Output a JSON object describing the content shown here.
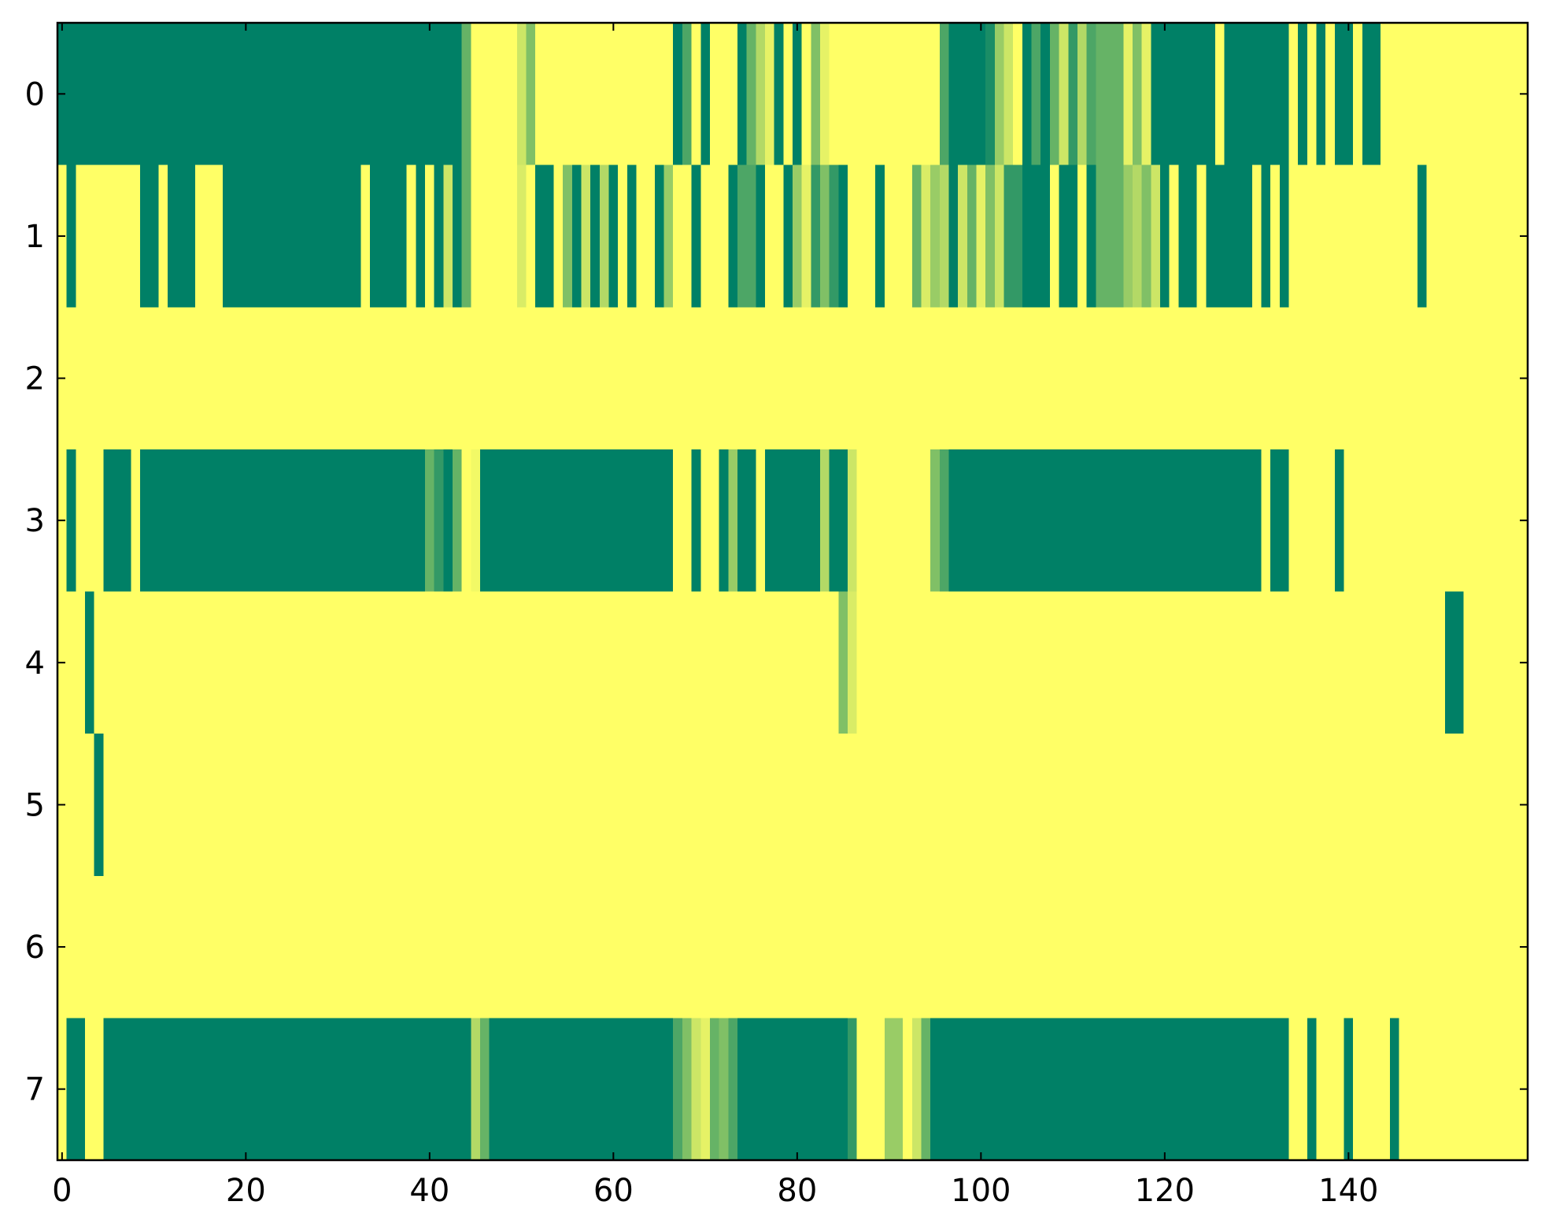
{
  "chart_data": {
    "type": "heatmap",
    "xlim": [
      -0.5,
      159.5
    ],
    "ylim": [
      7.5,
      -0.5
    ],
    "xticks": [
      0,
      20,
      40,
      60,
      80,
      100,
      120,
      140
    ],
    "yticks": [
      0,
      1,
      2,
      3,
      4,
      5,
      6,
      7
    ],
    "colormap": [
      "#008066",
      "#ffff66"
    ],
    "vmin": 0,
    "vmax": 1,
    "z": [
      [
        0,
        0,
        0,
        0,
        0,
        0,
        0,
        0,
        0,
        0,
        0,
        0,
        0,
        0,
        0,
        0,
        0,
        0,
        0,
        0,
        0,
        0,
        0,
        0,
        0,
        0,
        0,
        0,
        0,
        0,
        0,
        0,
        0,
        0,
        0,
        0,
        0,
        0,
        0,
        0,
        0,
        0,
        0,
        0,
        0.4,
        1,
        1,
        1,
        1,
        1,
        0.8,
        0.5,
        1,
        1,
        1,
        1,
        1,
        1,
        1,
        1,
        1,
        1,
        1,
        1,
        1,
        1,
        1,
        0,
        0.3,
        1,
        0,
        1,
        1,
        1,
        0,
        0.4,
        0.7,
        0.9,
        0,
        1,
        0,
        1,
        0.5,
        0.9,
        1,
        1,
        1,
        1,
        1,
        1,
        1,
        1,
        1,
        1,
        1,
        1,
        0.3,
        0,
        0,
        0,
        0,
        0.1,
        0.6,
        0.8,
        1,
        0,
        0.3,
        0,
        0.4,
        0.8,
        0.2,
        0.7,
        0.3,
        0.4,
        0.4,
        0.4,
        0.9,
        0.5,
        0.9,
        0,
        0,
        0,
        0,
        0,
        0,
        0,
        1,
        0,
        0,
        0,
        0,
        0,
        0,
        0,
        1,
        0,
        1,
        0,
        1,
        0,
        0,
        1,
        0,
        0,
        1,
        1,
        1,
        1,
        1,
        1,
        1,
        1,
        1,
        1,
        1,
        1,
        1,
        1,
        1,
        1
      ],
      [
        1,
        0,
        1,
        1,
        1,
        1,
        1,
        1,
        1,
        0,
        0,
        1,
        0,
        0,
        0,
        1,
        1,
        1,
        0,
        0,
        0,
        0,
        0,
        0,
        0,
        0,
        0,
        0,
        0,
        0,
        0,
        0,
        0,
        1,
        0,
        0,
        0,
        0,
        1,
        0,
        1,
        0,
        0.8,
        0,
        0.4,
        1,
        1,
        1,
        1,
        1,
        0.85,
        1,
        0,
        0,
        1,
        0.5,
        0,
        0.8,
        0,
        0.7,
        0,
        1,
        0,
        1,
        1,
        0,
        0.6,
        1,
        1,
        0,
        1,
        1,
        1,
        0,
        0.3,
        0.3,
        0,
        1,
        1,
        0,
        0.6,
        0.9,
        0.2,
        0.5,
        0.2,
        0,
        1,
        1,
        1,
        0,
        1,
        1,
        1,
        0.4,
        0.85,
        0.6,
        0.7,
        0,
        0.8,
        0.4,
        0.9,
        0.5,
        0.8,
        0.2,
        0.2,
        0,
        0,
        0,
        1,
        0,
        0,
        1,
        0,
        0.4,
        0.4,
        0.4,
        0.6,
        0.7,
        0.5,
        0.8,
        0,
        1,
        0,
        0,
        1,
        0,
        0,
        0,
        0,
        0,
        1,
        0,
        1,
        0,
        1,
        1,
        1,
        1,
        1,
        1,
        1,
        1,
        1,
        1,
        1,
        1,
        1,
        1,
        0,
        1,
        1,
        1,
        1,
        1,
        1,
        1,
        1,
        1,
        1,
        1
      ],
      [
        1,
        1,
        1,
        1,
        1,
        1,
        1,
        1,
        1,
        1,
        1,
        1,
        1,
        1,
        1,
        1,
        1,
        1,
        1,
        1,
        1,
        1,
        1,
        1,
        1,
        1,
        1,
        1,
        1,
        1,
        1,
        1,
        1,
        1,
        1,
        1,
        1,
        1,
        1,
        1,
        1,
        1,
        1,
        1,
        1,
        1,
        1,
        1,
        1,
        1,
        1,
        1,
        1,
        1,
        1,
        1,
        1,
        1,
        1,
        1,
        1,
        1,
        1,
        1,
        1,
        1,
        1,
        1,
        1,
        1,
        1,
        1,
        1,
        1,
        1,
        1,
        1,
        1,
        1,
        1,
        1,
        1,
        1,
        1,
        1,
        1,
        1,
        1,
        1,
        1,
        1,
        1,
        1,
        1,
        1,
        1,
        1,
        1,
        1,
        1,
        1,
        1,
        1,
        1,
        1,
        1,
        1,
        1,
        1,
        1,
        1,
        1,
        1,
        1,
        1,
        1,
        1,
        1,
        1,
        1,
        1,
        1,
        1,
        1,
        1,
        1,
        1,
        1,
        1,
        1,
        1,
        1,
        1,
        1,
        1,
        1,
        1,
        1,
        1,
        1,
        1,
        1,
        1,
        1,
        1,
        1,
        1,
        1,
        1,
        1,
        1,
        1,
        1,
        1,
        1,
        1,
        1,
        1,
        1,
        1
      ],
      [
        1,
        0,
        1,
        1,
        1,
        0,
        0,
        0,
        1,
        0,
        0,
        0,
        0,
        0,
        0,
        0,
        0,
        0,
        0,
        0,
        0,
        0,
        0,
        0,
        0,
        0,
        0,
        0,
        0,
        0,
        0,
        0,
        0,
        0,
        0,
        0,
        0,
        0,
        0,
        0,
        0.4,
        0.2,
        0,
        0.4,
        1,
        0.95,
        0,
        0,
        0,
        0,
        0,
        0,
        0,
        0,
        0,
        0,
        0,
        0,
        0,
        0,
        0,
        0,
        0,
        0,
        0,
        0,
        0,
        1,
        1,
        0,
        1,
        1,
        0,
        0.6,
        0,
        0,
        1,
        0,
        0,
        0,
        0,
        0,
        0,
        0.7,
        0,
        0,
        0.8,
        1,
        1,
        1,
        1,
        1,
        1,
        1,
        1,
        0.5,
        0.3,
        0,
        0,
        0,
        0,
        0,
        0,
        0,
        0,
        0,
        0,
        0,
        0,
        0,
        0,
        0,
        0,
        0,
        0,
        0,
        0,
        0,
        0,
        0,
        0,
        0,
        0,
        0,
        0,
        0,
        0,
        0,
        0,
        0,
        0,
        1,
        0,
        0,
        1,
        1,
        1,
        1,
        1,
        0,
        1,
        1,
        1,
        1,
        1,
        1,
        1,
        1,
        1,
        1,
        1,
        1,
        1,
        1,
        1,
        1,
        1,
        1,
        1,
        1
      ],
      [
        1,
        1,
        1,
        0,
        1,
        1,
        1,
        1,
        1,
        1,
        1,
        1,
        1,
        1,
        1,
        1,
        1,
        1,
        1,
        1,
        1,
        1,
        1,
        1,
        1,
        1,
        1,
        1,
        1,
        1,
        1,
        1,
        1,
        1,
        1,
        1,
        1,
        1,
        1,
        1,
        1,
        1,
        1,
        1,
        1,
        1,
        1,
        1,
        1,
        1,
        1,
        1,
        1,
        1,
        1,
        1,
        1,
        1,
        1,
        1,
        1,
        1,
        1,
        1,
        1,
        1,
        1,
        1,
        1,
        1,
        1,
        1,
        1,
        1,
        1,
        1,
        1,
        1,
        1,
        1,
        1,
        1,
        1,
        1,
        1,
        0.5,
        0.85,
        1,
        1,
        1,
        1,
        1,
        1,
        1,
        1,
        1,
        1,
        1,
        1,
        1,
        1,
        1,
        1,
        1,
        1,
        1,
        1,
        1,
        1,
        1,
        1,
        1,
        1,
        1,
        1,
        1,
        1,
        1,
        1,
        1,
        1,
        1,
        1,
        1,
        1,
        1,
        1,
        1,
        1,
        1,
        1,
        1,
        1,
        1,
        1,
        1,
        1,
        1,
        1,
        1,
        1,
        1,
        1,
        1,
        1,
        1,
        1,
        1,
        1,
        1,
        1,
        0,
        0,
        1,
        1,
        1,
        1,
        1,
        1,
        1
      ],
      [
        1,
        1,
        1,
        1,
        0,
        1,
        1,
        1,
        1,
        1,
        1,
        1,
        1,
        1,
        1,
        1,
        1,
        1,
        1,
        1,
        1,
        1,
        1,
        1,
        1,
        1,
        1,
        1,
        1,
        1,
        1,
        1,
        1,
        1,
        1,
        1,
        1,
        1,
        1,
        1,
        1,
        1,
        1,
        1,
        1,
        1,
        1,
        1,
        1,
        1,
        1,
        1,
        1,
        1,
        1,
        1,
        1,
        1,
        1,
        1,
        1,
        1,
        1,
        1,
        1,
        1,
        1,
        1,
        1,
        1,
        1,
        1,
        1,
        1,
        1,
        1,
        1,
        1,
        1,
        1,
        1,
        1,
        1,
        1,
        1,
        1,
        1,
        1,
        1,
        1,
        1,
        1,
        1,
        1,
        1,
        1,
        1,
        1,
        1,
        1,
        1,
        1,
        1,
        1,
        1,
        1,
        1,
        1,
        1,
        1,
        1,
        1,
        1,
        1,
        1,
        1,
        1,
        1,
        1,
        1,
        1,
        1,
        1,
        1,
        1,
        1,
        1,
        1,
        1,
        1,
        1,
        1,
        1,
        1,
        1,
        1,
        1,
        1,
        1,
        1,
        1,
        1,
        1,
        1,
        1,
        1,
        1,
        1,
        1,
        1,
        1,
        1,
        1,
        1,
        1,
        1,
        1,
        1,
        1,
        1
      ],
      [
        1,
        1,
        1,
        1,
        1,
        1,
        1,
        1,
        1,
        1,
        1,
        1,
        1,
        1,
        1,
        1,
        1,
        1,
        1,
        1,
        1,
        1,
        1,
        1,
        1,
        1,
        1,
        1,
        1,
        1,
        1,
        1,
        1,
        1,
        1,
        1,
        1,
        1,
        1,
        1,
        1,
        1,
        1,
        1,
        1,
        1,
        1,
        1,
        1,
        1,
        1,
        1,
        1,
        1,
        1,
        1,
        1,
        1,
        1,
        1,
        1,
        1,
        1,
        1,
        1,
        1,
        1,
        1,
        1,
        1,
        1,
        1,
        1,
        1,
        1,
        1,
        1,
        1,
        1,
        1,
        1,
        1,
        1,
        1,
        1,
        1,
        1,
        1,
        1,
        1,
        1,
        1,
        1,
        1,
        1,
        1,
        1,
        1,
        1,
        1,
        1,
        1,
        1,
        1,
        1,
        1,
        1,
        1,
        1,
        1,
        1,
        1,
        1,
        1,
        1,
        1,
        1,
        1,
        1,
        1,
        1,
        1,
        1,
        1,
        1,
        1,
        1,
        1,
        1,
        1,
        1,
        1,
        1,
        1,
        1,
        1,
        1,
        1,
        1,
        1,
        1,
        1,
        1,
        1,
        1,
        1,
        1,
        1,
        1,
        1,
        1,
        1,
        1,
        1,
        1,
        1,
        1,
        1,
        1,
        1
      ],
      [
        1,
        0,
        0,
        1,
        1,
        0,
        0,
        0,
        0,
        0,
        0,
        0,
        0,
        0,
        0,
        0,
        0,
        0,
        0,
        0,
        0,
        0,
        0,
        0,
        0,
        0,
        0,
        0,
        0,
        0,
        0,
        0,
        0,
        0,
        0,
        0,
        0,
        0,
        0,
        0,
        0,
        0,
        0,
        0,
        0,
        0.7,
        0.4,
        0,
        0,
        0,
        0,
        0,
        0,
        0,
        0,
        0,
        0,
        0,
        0,
        0,
        0,
        0,
        0,
        0,
        0,
        0,
        0,
        0.3,
        0.5,
        0.8,
        0.9,
        0.4,
        0.5,
        0.3,
        0,
        0,
        0,
        0,
        0,
        0,
        0,
        0,
        0,
        0,
        0,
        0,
        0.2,
        1,
        1,
        1,
        0.6,
        0.6,
        1,
        0.8,
        0.4,
        0,
        0,
        0,
        0,
        0,
        0,
        0,
        0,
        0,
        0,
        0,
        0,
        0,
        0,
        0,
        0,
        0,
        0,
        0,
        0,
        0,
        0,
        0,
        0,
        0,
        0,
        0,
        0,
        0,
        0,
        0,
        0,
        0,
        0,
        0,
        0,
        0,
        0,
        0,
        1,
        1,
        0,
        1,
        1,
        1,
        0,
        1,
        1,
        1,
        1,
        0,
        1,
        1,
        1,
        1,
        1,
        1,
        1,
        1,
        1,
        1,
        1,
        1,
        1,
        1
      ]
    ]
  }
}
